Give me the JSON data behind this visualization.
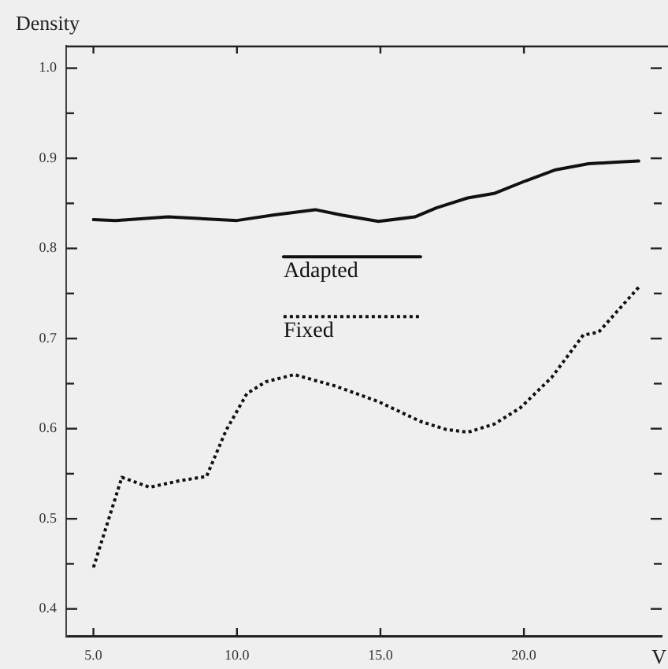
{
  "chart_data": {
    "type": "line",
    "xlabel": "V",
    "ylabel": "Density",
    "xlim": [
      4.05,
      24.8
    ],
    "xticks": [
      {
        "value": 5,
        "label": "5.0"
      },
      {
        "value": 10,
        "label": "10.0"
      },
      {
        "value": 15,
        "label": "15.0"
      },
      {
        "value": 20,
        "label": "20.0"
      }
    ],
    "ylim": [
      0.37,
      1.025
    ],
    "yticks": [
      0.4,
      {
        "value": 0.45,
        "label": null
      },
      0.5,
      {
        "value": 0.55,
        "label": null
      },
      0.6,
      {
        "value": 0.65,
        "label": null
      },
      0.7,
      {
        "value": 0.75,
        "label": null
      },
      0.8,
      {
        "value": 0.85,
        "label": null
      },
      0.9,
      {
        "value": 0.95,
        "label": null
      },
      {
        "value": 1,
        "label": "1.0"
      }
    ],
    "grid": false,
    "legend": "center",
    "marker": "none",
    "series": [
      {
        "name": "Adapted",
        "color": "#111111",
        "line_style": "solid",
        "x": [
          5.0,
          5.77,
          7.6,
          10.0,
          11.26,
          12.73,
          13.65,
          14.93,
          16.2,
          16.95,
          18.04,
          18.96,
          20.06,
          21.07,
          22.25,
          23.35,
          24.0
        ],
        "values": [
          0.832,
          0.831,
          0.835,
          0.831,
          0.837,
          0.843,
          0.837,
          0.83,
          0.835,
          0.845,
          0.856,
          0.861,
          0.875,
          0.887,
          0.894,
          0.896,
          0.897
        ]
      },
      {
        "name": "Fixed",
        "color": "#111111",
        "line_style": "dotted",
        "x": [
          5.0,
          5.99,
          6.96,
          7.97,
          8.94,
          9.62,
          10.35,
          11.0,
          12.0,
          13.46,
          14.93,
          16.4,
          17.3,
          18.04,
          18.96,
          19.87,
          20.97,
          22.07,
          22.6,
          24.0
        ],
        "values": [
          0.446,
          0.546,
          0.535,
          0.542,
          0.547,
          0.598,
          0.639,
          0.652,
          0.66,
          0.647,
          0.63,
          0.608,
          0.599,
          0.596,
          0.605,
          0.623,
          0.657,
          0.704,
          0.707,
          0.757
        ]
      }
    ]
  }
}
